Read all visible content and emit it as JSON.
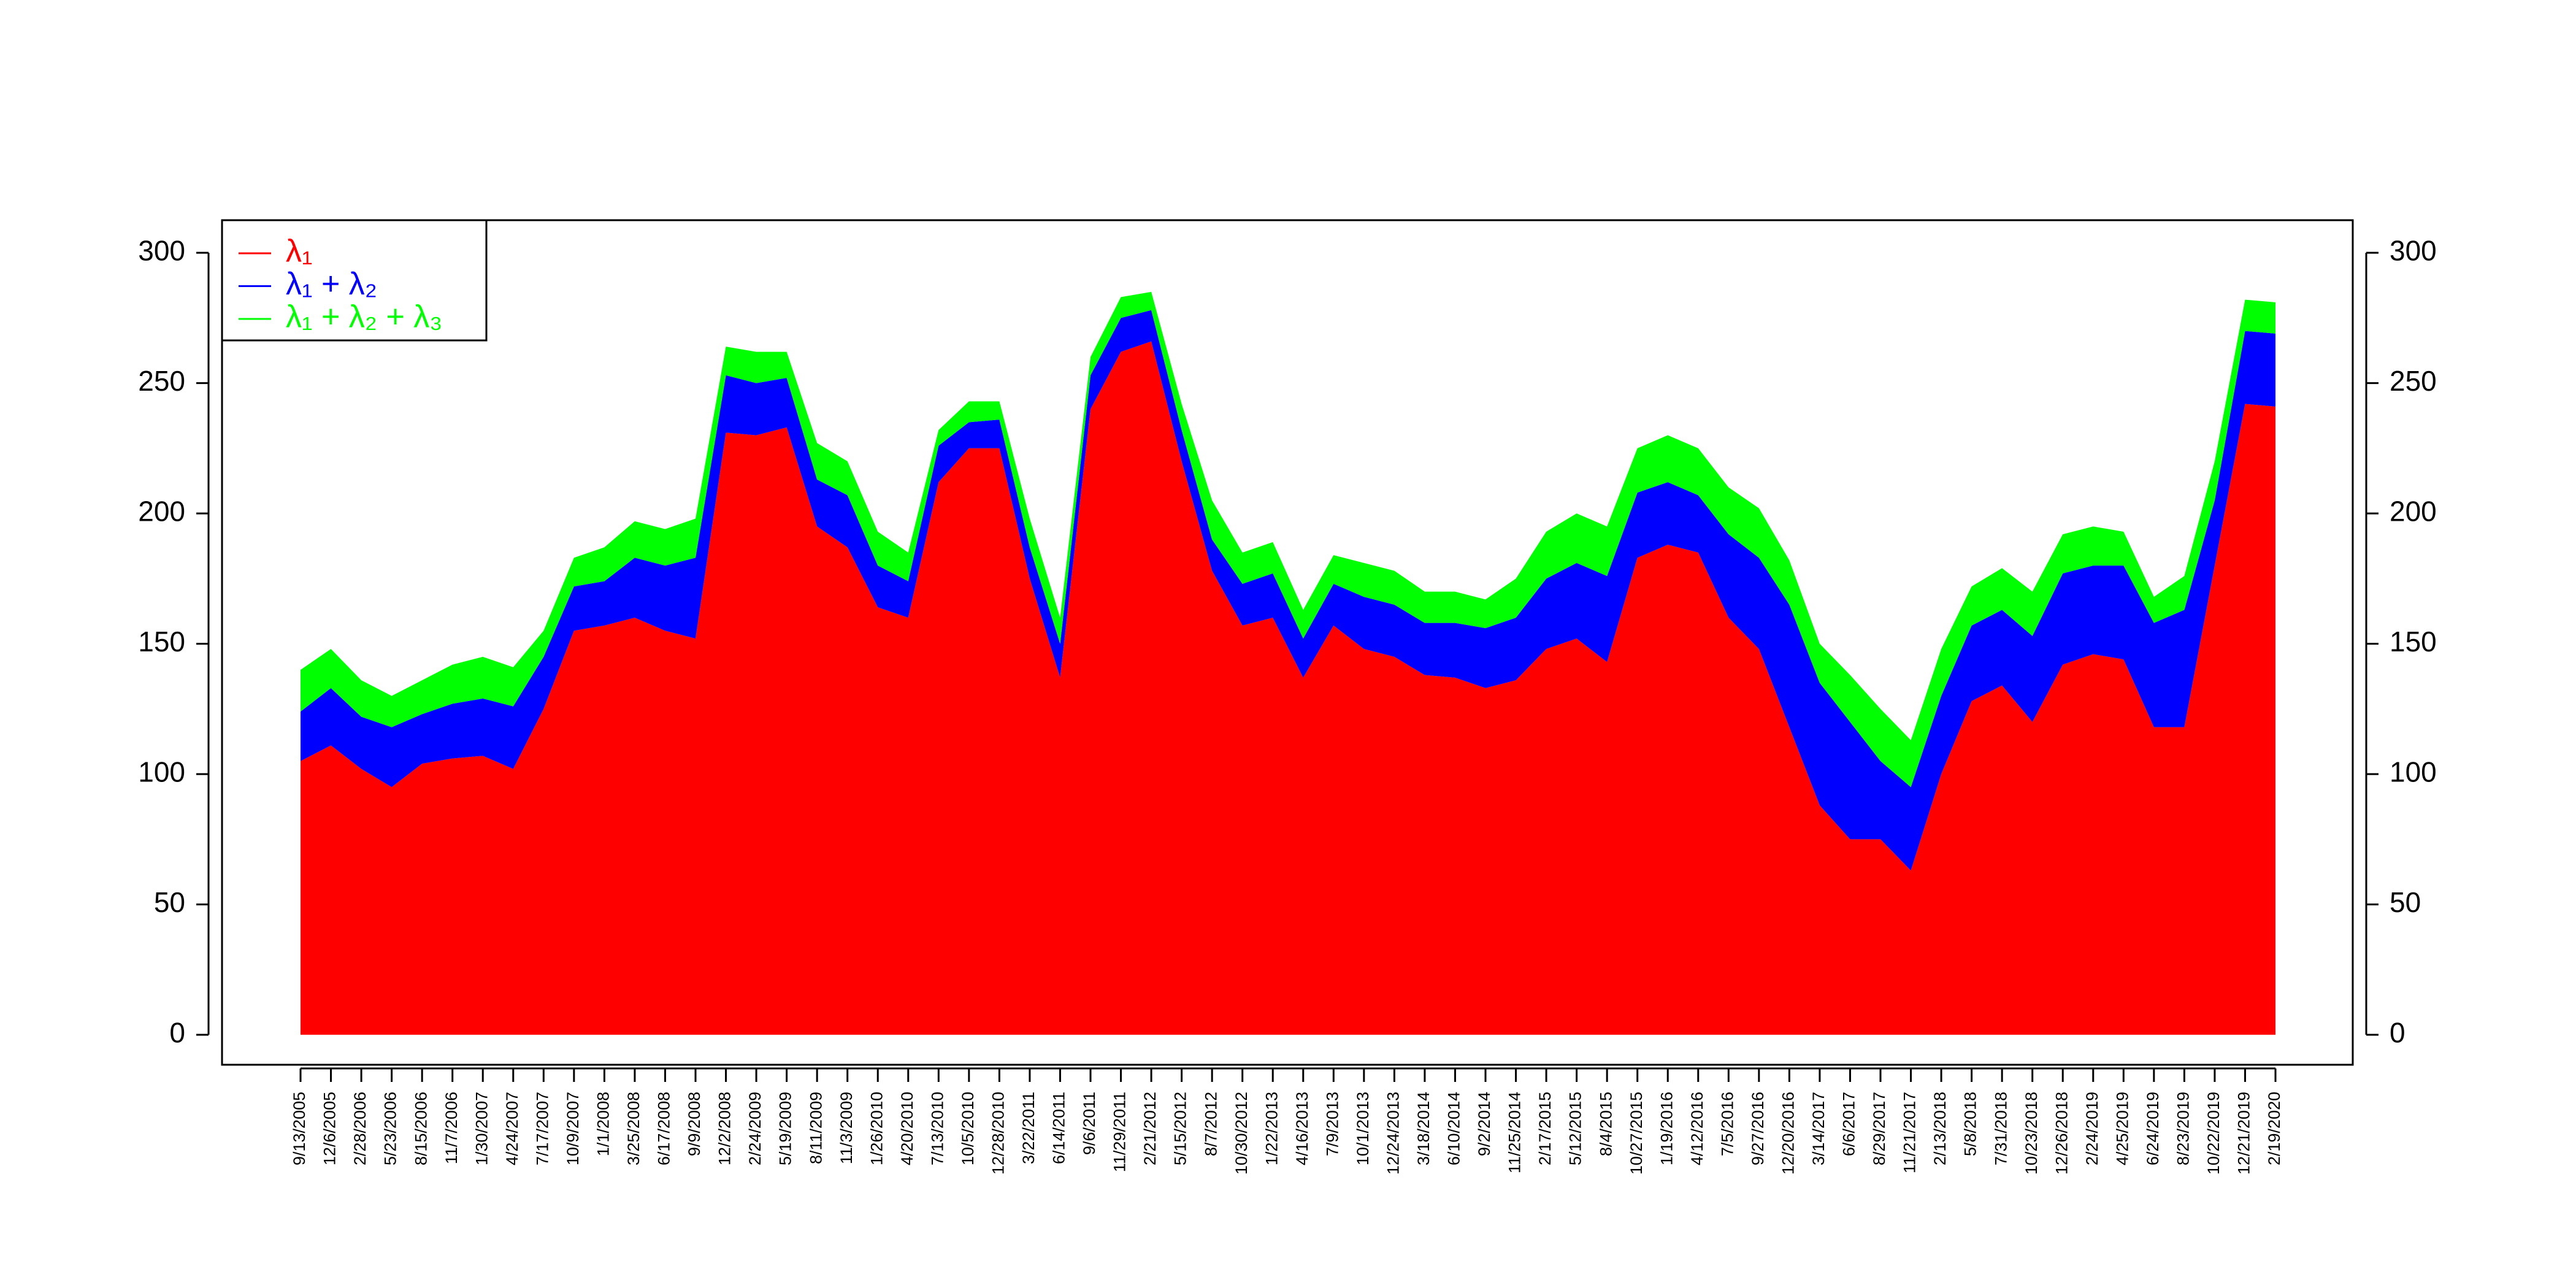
{
  "chart_data": {
    "type": "area",
    "stacked": true,
    "categories": [
      "9/13/2005",
      "12/6/2005",
      "2/28/2006",
      "5/23/2006",
      "8/15/2006",
      "11/7/2006",
      "1/30/2007",
      "4/24/2007",
      "7/17/2007",
      "10/9/2007",
      "1/1/2008",
      "3/25/2008",
      "6/17/2008",
      "9/9/2008",
      "12/2/2008",
      "2/24/2009",
      "5/19/2009",
      "8/11/2009",
      "11/3/2009",
      "1/26/2010",
      "4/20/2010",
      "7/13/2010",
      "10/5/2010",
      "12/28/2010",
      "3/22/2011",
      "6/14/2011",
      "9/6/2011",
      "11/29/2011",
      "2/21/2012",
      "5/15/2012",
      "8/7/2012",
      "10/30/2012",
      "1/22/2013",
      "4/16/2013",
      "7/9/2013",
      "10/1/2013",
      "12/24/2013",
      "3/18/2014",
      "6/10/2014",
      "9/2/2014",
      "11/25/2014",
      "2/17/2015",
      "5/12/2015",
      "8/4/2015",
      "10/27/2015",
      "1/19/2016",
      "4/12/2016",
      "7/5/2016",
      "9/27/2016",
      "12/20/2016",
      "3/14/2017",
      "6/6/2017",
      "8/29/2017",
      "11/21/2017",
      "2/13/2018",
      "5/8/2018",
      "7/31/2018",
      "10/23/2018",
      "12/26/2018",
      "2/24/2019",
      "4/25/2019",
      "6/24/2019",
      "8/23/2019",
      "10/22/2019",
      "12/21/2019",
      "2/19/2020"
    ],
    "series": [
      {
        "name": "λ₁",
        "color": "#ff0000",
        "values": [
          105,
          111,
          102,
          95,
          104,
          106,
          107,
          102,
          125,
          155,
          157,
          160,
          155,
          152,
          231,
          230,
          233,
          195,
          187,
          164,
          160,
          212,
          225,
          225,
          175,
          137,
          240,
          262,
          266,
          220,
          178,
          157,
          160,
          137,
          157,
          148,
          145,
          138,
          137,
          133,
          136,
          148,
          152,
          143,
          183,
          188,
          185,
          160,
          148,
          118,
          88,
          75,
          75,
          63,
          100,
          128,
          134,
          120,
          142,
          146,
          144,
          118,
          118,
          180,
          242,
          241
        ]
      },
      {
        "name": "λ₁ + λ₂",
        "color": "#0000ff",
        "values": [
          19,
          22,
          20,
          23,
          19,
          21,
          22,
          24,
          20,
          17,
          17,
          23,
          25,
          31,
          22,
          20,
          19,
          18,
          20,
          16,
          14,
          14,
          10,
          11,
          12,
          13,
          13,
          13,
          12,
          12,
          12,
          16,
          17,
          15,
          16,
          20,
          20,
          20,
          21,
          23,
          24,
          27,
          29,
          33,
          25,
          24,
          22,
          32,
          35,
          47,
          47,
          45,
          30,
          32,
          30,
          29,
          29,
          33,
          35,
          34,
          36,
          40,
          45,
          25,
          28,
          28
        ]
      },
      {
        "name": "λ₁ + λ₂ + λ₃",
        "color": "#00ff00",
        "values": [
          16,
          15,
          14,
          12,
          13,
          15,
          16,
          15,
          10,
          11,
          13,
          14,
          14,
          15,
          11,
          12,
          10,
          14,
          13,
          13,
          11,
          6,
          8,
          7,
          11,
          10,
          7,
          8,
          7,
          10,
          15,
          12,
          12,
          11,
          11,
          13,
          13,
          12,
          12,
          11,
          15,
          18,
          19,
          19,
          17,
          18,
          18,
          18,
          19,
          17,
          15,
          18,
          20,
          18,
          18,
          15,
          16,
          17,
          15,
          15,
          13,
          10,
          13,
          15,
          12,
          12
        ]
      }
    ],
    "ylim": [
      -11.5,
      312.5
    ],
    "yticks": [
      0,
      50,
      100,
      150,
      200,
      250,
      300
    ],
    "y2lim": [
      -11.5,
      312.5
    ],
    "y2ticks": [
      0,
      50,
      100,
      150,
      200,
      250,
      300
    ],
    "legend": "top-left"
  }
}
